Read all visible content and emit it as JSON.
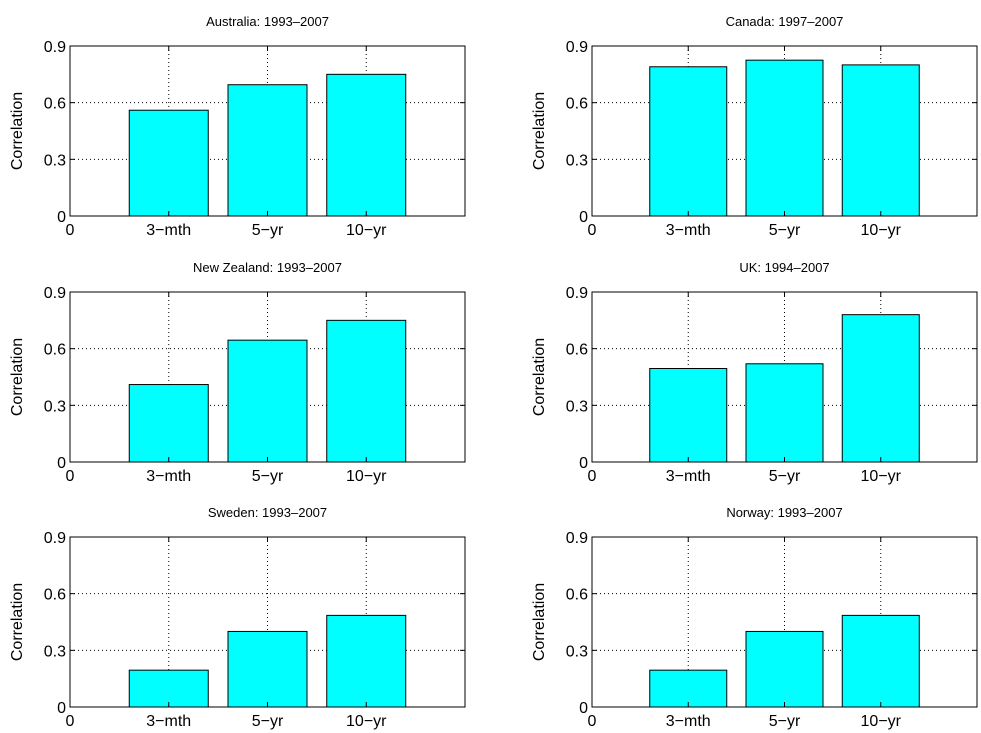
{
  "style": {
    "bar_color": "#00ffff",
    "edge_color": "#000000"
  },
  "chart_data": [
    {
      "type": "bar",
      "title": "Australia: 1993–2007",
      "ylabel": "Correlation",
      "categories": [
        "3−mth",
        "5−yr",
        "10−yr"
      ],
      "values": [
        0.56,
        0.695,
        0.75
      ],
      "x_tick_positions": [
        0,
        1,
        2,
        3
      ],
      "x_tick_labels": [
        "0",
        "3−mth",
        "5−yr",
        "10−yr"
      ],
      "xlim": [
        0,
        4
      ],
      "ylim": [
        0,
        0.9
      ],
      "yticks": [
        0,
        0.3,
        0.6,
        0.9
      ],
      "ytick_labels": [
        "0",
        "0.3",
        "0.6",
        "0.9"
      ],
      "grid": true
    },
    {
      "type": "bar",
      "title": "Canada: 1997–2007",
      "ylabel": "Correlation",
      "categories": [
        "3−mth",
        "5−yr",
        "10−yr"
      ],
      "values": [
        0.79,
        0.825,
        0.8
      ],
      "x_tick_positions": [
        0,
        1,
        2,
        3
      ],
      "x_tick_labels": [
        "0",
        "3−mth",
        "5−yr",
        "10−yr"
      ],
      "xlim": [
        0,
        4
      ],
      "ylim": [
        0,
        0.9
      ],
      "yticks": [
        0,
        0.3,
        0.6,
        0.9
      ],
      "ytick_labels": [
        "0",
        "0.3",
        "0.6",
        "0.9"
      ],
      "grid": true
    },
    {
      "type": "bar",
      "title": "New Zealand: 1993–2007",
      "ylabel": "Correlation",
      "categories": [
        "3−mth",
        "5−yr",
        "10−yr"
      ],
      "values": [
        0.41,
        0.645,
        0.75
      ],
      "x_tick_positions": [
        0,
        1,
        2,
        3
      ],
      "x_tick_labels": [
        "0",
        "3−mth",
        "5−yr",
        "10−yr"
      ],
      "xlim": [
        0,
        4
      ],
      "ylim": [
        0,
        0.9
      ],
      "yticks": [
        0,
        0.3,
        0.6,
        0.9
      ],
      "ytick_labels": [
        "0",
        "0.3",
        "0.6",
        "0.9"
      ],
      "grid": true
    },
    {
      "type": "bar",
      "title": "UK: 1994–2007",
      "ylabel": "Correlation",
      "categories": [
        "3−mth",
        "5−yr",
        "10−yr"
      ],
      "values": [
        0.495,
        0.52,
        0.78
      ],
      "x_tick_positions": [
        0,
        1,
        2,
        3
      ],
      "x_tick_labels": [
        "0",
        "3−mth",
        "5−yr",
        "10−yr"
      ],
      "xlim": [
        0,
        4
      ],
      "ylim": [
        0,
        0.9
      ],
      "yticks": [
        0,
        0.3,
        0.6,
        0.9
      ],
      "ytick_labels": [
        "0",
        "0.3",
        "0.6",
        "0.9"
      ],
      "grid": true
    },
    {
      "type": "bar",
      "title": "Sweden: 1993–2007",
      "ylabel": "Correlation",
      "categories": [
        "3−mth",
        "5−yr",
        "10−yr"
      ],
      "values": [
        0.195,
        0.4,
        0.485
      ],
      "x_tick_positions": [
        0,
        1,
        2,
        3
      ],
      "x_tick_labels": [
        "0",
        "3−mth",
        "5−yr",
        "10−yr"
      ],
      "xlim": [
        0,
        4
      ],
      "ylim": [
        0,
        0.9
      ],
      "yticks": [
        0,
        0.3,
        0.6,
        0.9
      ],
      "ytick_labels": [
        "0",
        "0.3",
        "0.6",
        "0.9"
      ],
      "grid": true
    },
    {
      "type": "bar",
      "title": "Norway: 1993–2007",
      "ylabel": "Correlation",
      "categories": [
        "3−mth",
        "5−yr",
        "10−yr"
      ],
      "values": [
        0.195,
        0.4,
        0.485
      ],
      "x_tick_positions": [
        0,
        1,
        2,
        3
      ],
      "x_tick_labels": [
        "0",
        "3−mth",
        "5−yr",
        "10−yr"
      ],
      "xlim": [
        0,
        4
      ],
      "ylim": [
        0,
        0.9
      ],
      "yticks": [
        0,
        0.3,
        0.6,
        0.9
      ],
      "ytick_labels": [
        "0",
        "0.3",
        "0.6",
        "0.9"
      ],
      "grid": true
    }
  ]
}
